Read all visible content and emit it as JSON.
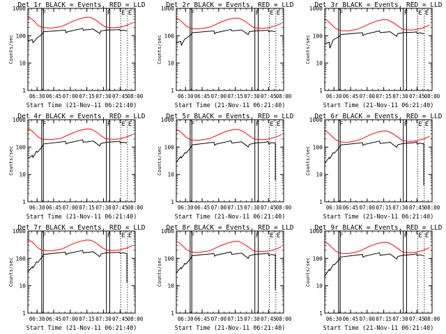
{
  "chart_data": [
    {
      "type": "line",
      "title": "Det 1r BLACK = Events, RED = LLD",
      "series": [
        {
          "color": "#ff0000",
          "x": [
            0,
            3,
            6,
            9,
            13,
            16,
            20,
            22,
            30,
            35,
            40,
            47,
            53,
            57,
            62,
            67,
            70,
            73,
            78,
            83,
            88,
            92,
            95
          ],
          "y": [
            480,
            420,
            330,
            240,
            200,
            195,
            190,
            192,
            215,
            265,
            330,
            420,
            470,
            460,
            360,
            250,
            210,
            200,
            195,
            205,
            230,
            265,
            300
          ]
        },
        {
          "color": "#000000",
          "x": [
            0,
            4,
            4.6,
            7,
            7.6,
            8.8,
            13.5,
            14.1,
            34,
            34.6,
            36,
            49.5,
            50.1,
            59,
            65,
            66,
            71,
            81,
            83,
            83.4,
            86,
            89.5
          ],
          "y": [
            65,
            72,
            56,
            70,
            80,
            85,
            120,
            140,
            160,
            128,
            140,
            185,
            160,
            175,
            120,
            150,
            160,
            165,
            170,
            150,
            160,
            150
          ]
        }
      ],
      "annotations": [
        "F",
        "F",
        "E",
        "E"
      ],
      "xticks": [
        "06:30",
        "06:45",
        "07:00",
        "07:15",
        "07:30",
        "07:45",
        "08:00"
      ],
      "yticks": [
        "1",
        "10",
        "100",
        "1000"
      ],
      "ylabel": "Counts/sec",
      "xlabel": "Start Time (21-Nov-11 06:21:40)"
    },
    {
      "type": "line",
      "title": "Det 2r BLACK = Events, RED = LLD",
      "series": [
        {
          "color": "#ff0000",
          "x": [
            0,
            3,
            6,
            9,
            13,
            16,
            20,
            22,
            30,
            35,
            40,
            47,
            53,
            57,
            62,
            67,
            70,
            73,
            78,
            83,
            88,
            92,
            95
          ],
          "y": [
            440,
            380,
            300,
            225,
            185,
            180,
            178,
            180,
            205,
            250,
            310,
            395,
            440,
            430,
            340,
            240,
            200,
            190,
            185,
            195,
            220,
            250,
            285
          ]
        },
        {
          "color": "#000000",
          "x": [
            0,
            4,
            4.6,
            7,
            7.6,
            8.8,
            13.5,
            14.1,
            34,
            34.6,
            36,
            49.5,
            50.1,
            59,
            65,
            66,
            71,
            81,
            83,
            83.4,
            86,
            89.5
          ],
          "y": [
            55,
            62,
            45,
            68,
            75,
            80,
            110,
            128,
            150,
            118,
            130,
            170,
            150,
            162,
            110,
            140,
            150,
            155,
            160,
            140,
            150,
            140
          ]
        }
      ],
      "annotations": [
        "F",
        "F",
        "E",
        "E"
      ],
      "xticks": [
        "06:30",
        "06:45",
        "07:00",
        "07:15",
        "07:30",
        "07:45",
        "08:00"
      ],
      "yticks": [
        "1",
        "10",
        "100",
        "1000"
      ],
      "ylabel": "Counts/sec",
      "xlabel": "Start Time (21-Nov-11 06:21:40)"
    },
    {
      "type": "line",
      "title": "Det 3r BLACK = Events, RED = LLD",
      "series": [
        {
          "color": "#ff0000",
          "x": [
            0,
            3,
            6,
            9,
            13,
            16,
            20,
            22,
            30,
            35,
            40,
            47,
            53,
            57,
            62,
            67,
            70,
            73,
            78,
            83,
            88,
            92,
            95
          ],
          "y": [
            400,
            340,
            260,
            195,
            160,
            152,
            150,
            152,
            175,
            215,
            270,
            345,
            390,
            380,
            300,
            215,
            175,
            165,
            160,
            170,
            190,
            220,
            250
          ]
        },
        {
          "color": "#000000",
          "x": [
            0,
            4,
            4.6,
            7,
            7.6,
            8.8,
            13.5,
            14.1,
            34,
            34.6,
            36,
            49.5,
            50.1,
            59,
            65,
            66,
            71,
            81,
            83,
            83.4,
            86,
            89.5
          ],
          "y": [
            50,
            58,
            35,
            60,
            70,
            75,
            95,
            110,
            130,
            100,
            112,
            150,
            130,
            140,
            95,
            120,
            130,
            135,
            140,
            120,
            128,
            118
          ]
        }
      ],
      "annotations": [
        "F",
        "F",
        "E",
        "E"
      ],
      "xticks": [
        "06:30",
        "06:45",
        "07:00",
        "07:15",
        "07:30",
        "07:45",
        "08:00"
      ],
      "yticks": [
        "1",
        "10",
        "100",
        "1000"
      ],
      "ylabel": "Counts/sec",
      "xlabel": "Start Time (21-Nov-11 06:21:40)"
    },
    {
      "type": "line",
      "title": "Det 4r BLACK = Events, RED = LLD",
      "series": [
        {
          "color": "#ff0000",
          "x": [
            0,
            3,
            6,
            9,
            13,
            16,
            20,
            22,
            30,
            35,
            40,
            47,
            53,
            57,
            62,
            67,
            70,
            73,
            78,
            83,
            88,
            92,
            95
          ],
          "y": [
            470,
            410,
            320,
            235,
            195,
            190,
            185,
            188,
            210,
            260,
            320,
            410,
            460,
            450,
            350,
            245,
            205,
            195,
            190,
            200,
            225,
            260,
            295
          ]
        },
        {
          "color": "#000000",
          "x": [
            0,
            4,
            4.6,
            7,
            7.6,
            8.8,
            13.5,
            14.1,
            34,
            34.6,
            36,
            49.5,
            50.1,
            59,
            65,
            66,
            71,
            81,
            83,
            83.4,
            86,
            89.5
          ],
          "y": [
            38,
            50,
            42,
            62,
            70,
            65,
            110,
            130,
            160,
            130,
            140,
            185,
            150,
            165,
            110,
            135,
            150,
            158,
            165,
            140,
            150,
            140
          ]
        }
      ],
      "annotations": [
        "F",
        "F",
        "E",
        "E"
      ],
      "xticks": [
        "06:30",
        "06:45",
        "07:00",
        "07:15",
        "07:30",
        "07:45",
        "08:00"
      ],
      "yticks": [
        "1",
        "10",
        "100",
        "1000"
      ],
      "ylabel": "Counts/sec",
      "xlabel": "Start Time (21-Nov-11 06:21:40)"
    },
    {
      "type": "line",
      "title": "Det 5r BLACK = Events, RED = LLD",
      "series": [
        {
          "color": "#ff0000",
          "x": [
            0,
            3,
            6,
            9,
            13,
            16,
            20,
            22,
            30,
            35,
            40,
            47,
            53,
            57,
            62,
            67,
            70,
            73,
            78,
            83,
            88,
            92,
            95
          ],
          "y": [
            440,
            380,
            300,
            225,
            185,
            180,
            178,
            180,
            205,
            250,
            310,
            395,
            440,
            430,
            340,
            240,
            200,
            190,
            185,
            195,
            220,
            250,
            285
          ]
        },
        {
          "color": "#000000",
          "x": [
            0,
            4,
            4.6,
            7,
            7.6,
            8.8,
            13.5,
            14.1,
            34,
            34.6,
            36,
            49.5,
            50.1,
            59,
            65,
            66,
            71,
            81,
            83,
            83.4,
            86,
            89.5
          ],
          "y": [
            28,
            45,
            40,
            55,
            62,
            60,
            100,
            120,
            150,
            115,
            128,
            170,
            140,
            155,
            100,
            125,
            140,
            150,
            160,
            130,
            145,
            140
          ]
        }
      ],
      "annotations": [
        "F",
        "F",
        "E",
        "E"
      ],
      "xticks": [
        "06:30",
        "06:45",
        "07:00",
        "07:15",
        "07:30",
        "07:45",
        "08:00"
      ],
      "yticks": [
        "1",
        "10",
        "100",
        "1000"
      ],
      "ylabel": "Counts/sec",
      "xlabel": "Start Time (21-Nov-11 06:21:40)"
    },
    {
      "type": "line",
      "title": "Det 6r BLACK = Events, RED = LLD",
      "series": [
        {
          "color": "#ff0000",
          "x": [
            0,
            3,
            6,
            9,
            13,
            16,
            20,
            22,
            30,
            35,
            40,
            47,
            53,
            57,
            62,
            67,
            70,
            73,
            78,
            83,
            88,
            92,
            95
          ],
          "y": [
            400,
            340,
            260,
            195,
            160,
            152,
            150,
            152,
            175,
            215,
            270,
            345,
            390,
            380,
            300,
            215,
            175,
            165,
            160,
            170,
            190,
            220,
            250
          ]
        },
        {
          "color": "#000000",
          "x": [
            0,
            4,
            4.6,
            7,
            7.6,
            8.8,
            13.5,
            14.1,
            34,
            34.6,
            36,
            49.5,
            50.1,
            59,
            65,
            66,
            71,
            81,
            83,
            83.4,
            86,
            89.5
          ],
          "y": [
            25,
            42,
            38,
            55,
            62,
            60,
            100,
            118,
            145,
            115,
            125,
            165,
            135,
            150,
            98,
            122,
            135,
            145,
            155,
            130,
            140,
            130
          ]
        }
      ],
      "annotations": [
        "F",
        "F",
        "E",
        "E"
      ],
      "xticks": [
        "06:30",
        "06:45",
        "07:00",
        "07:15",
        "07:30",
        "07:45",
        "08:00"
      ],
      "yticks": [
        "1",
        "10",
        "100",
        "1000"
      ],
      "ylabel": "Counts/sec",
      "xlabel": "Start Time (21-Nov-11 06:21:40)"
    },
    {
      "type": "line",
      "title": "Det 7r BLACK = Events, RED = LLD",
      "series": [
        {
          "color": "#ff0000",
          "x": [
            0,
            3,
            6,
            9,
            13,
            16,
            20,
            22,
            30,
            35,
            40,
            47,
            53,
            57,
            62,
            67,
            70,
            73,
            78,
            83,
            88,
            92,
            95
          ],
          "y": [
            480,
            420,
            330,
            240,
            200,
            195,
            190,
            192,
            215,
            265,
            330,
            420,
            470,
            460,
            360,
            250,
            210,
            200,
            195,
            205,
            230,
            265,
            300
          ]
        },
        {
          "color": "#000000",
          "x": [
            0,
            4,
            4.6,
            7,
            7.6,
            8.8,
            13.5,
            14.1,
            34,
            34.6,
            36,
            49.5,
            50.1,
            59,
            65,
            66,
            71,
            81,
            83,
            83.4,
            86,
            89.5
          ],
          "y": [
            32,
            50,
            45,
            65,
            75,
            70,
            120,
            140,
            170,
            135,
            150,
            195,
            160,
            175,
            115,
            145,
            160,
            165,
            170,
            150,
            160,
            150
          ]
        }
      ],
      "annotations": [
        "F",
        "F",
        "E",
        "E"
      ],
      "xticks": [
        "06:30",
        "06:45",
        "07:00",
        "07:15",
        "07:30",
        "07:45",
        "08:00"
      ],
      "yticks": [
        "1",
        "10",
        "100",
        "1000"
      ],
      "ylabel": "Counts/sec",
      "xlabel": "Start Time (21-Nov-11 06:21:40)"
    },
    {
      "type": "line",
      "title": "Det 8r BLACK = Events, RED = LLD",
      "series": [
        {
          "color": "#ff0000",
          "x": [
            0,
            3,
            6,
            9,
            13,
            16,
            20,
            22,
            30,
            35,
            40,
            47,
            53,
            57,
            62,
            67,
            70,
            73,
            78,
            83,
            88,
            92,
            95
          ],
          "y": [
            420,
            360,
            280,
            210,
            175,
            168,
            165,
            168,
            190,
            235,
            290,
            370,
            420,
            410,
            320,
            228,
            190,
            180,
            175,
            185,
            205,
            235,
            270
          ]
        },
        {
          "color": "#000000",
          "x": [
            0,
            4,
            4.6,
            7,
            7.6,
            8.8,
            13.5,
            14.1,
            34,
            34.6,
            36,
            49.5,
            50.1,
            59,
            65,
            66,
            71,
            81,
            83,
            83.4,
            86,
            89.5
          ],
          "y": [
            30,
            46,
            42,
            58,
            66,
            62,
            105,
            125,
            150,
            120,
            132,
            172,
            140,
            155,
            100,
            125,
            140,
            150,
            155,
            130,
            140,
            130
          ]
        }
      ],
      "annotations": [
        "F",
        "F",
        "E",
        "E"
      ],
      "xticks": [
        "06:30",
        "06:45",
        "07:00",
        "07:15",
        "07:30",
        "07:45",
        "08:00"
      ],
      "yticks": [
        "1",
        "10",
        "100",
        "1000"
      ],
      "ylabel": "Counts/sec",
      "xlabel": "Start Time (21-Nov-11 06:21:40)"
    },
    {
      "type": "line",
      "title": "Det 9r BLACK = Events, RED = LLD",
      "series": [
        {
          "color": "#ff0000",
          "x": [
            0,
            3,
            6,
            9,
            13,
            16,
            20,
            22,
            30,
            35,
            40,
            47,
            53,
            57,
            62,
            67,
            70,
            73,
            78,
            83,
            88,
            92,
            95
          ],
          "y": [
            400,
            340,
            260,
            195,
            160,
            152,
            150,
            152,
            175,
            215,
            270,
            345,
            390,
            380,
            300,
            215,
            175,
            165,
            160,
            170,
            190,
            220,
            250
          ]
        },
        {
          "color": "#000000",
          "x": [
            0,
            4,
            4.6,
            7,
            7.6,
            8.8,
            13.5,
            14.1,
            34,
            34.6,
            36,
            49.5,
            50.1,
            59,
            65,
            66,
            71,
            81,
            83,
            83.4,
            86,
            89.5
          ],
          "y": [
            22,
            40,
            36,
            52,
            60,
            58,
            95,
            112,
            140,
            110,
            120,
            160,
            130,
            145,
            95,
            118,
            130,
            140,
            150,
            125,
            135,
            125
          ]
        }
      ],
      "annotations": [
        "F",
        "F",
        "E",
        "E"
      ],
      "xticks": [
        "06:30",
        "06:45",
        "07:00",
        "07:15",
        "07:30",
        "07:45",
        "08:00"
      ],
      "yticks": [
        "1",
        "10",
        "100",
        "1000"
      ],
      "ylabel": "Counts/sec",
      "xlabel": "Start Time (21-Nov-11 06:21:40)"
    }
  ]
}
